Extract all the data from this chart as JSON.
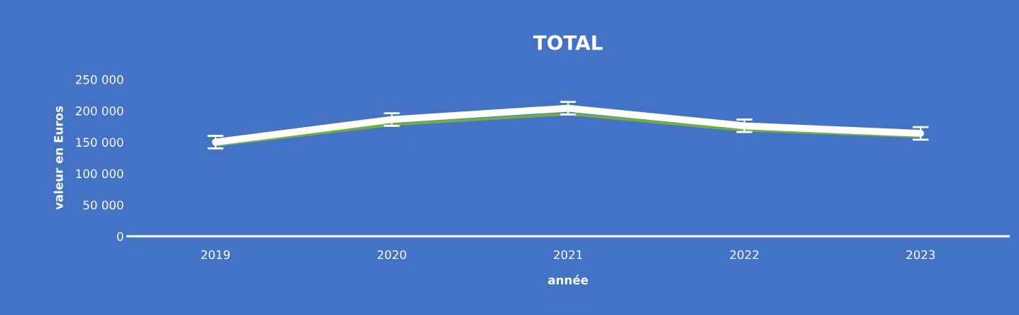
{
  "chart_data": {
    "type": "line",
    "title": "TOTAL",
    "xlabel": "année",
    "ylabel": "valeur en Euros",
    "categories": [
      "2019",
      "2020",
      "2021",
      "2022",
      "2023"
    ],
    "series": [
      {
        "color": "#70ad47",
        "values": [
          145000,
          178000,
          195000,
          169000,
          159000
        ]
      },
      {
        "color": "#ffffff",
        "values": [
          150000,
          186000,
          204000,
          176000,
          164000
        ],
        "errors": [
          10000,
          10000,
          10000,
          10000,
          10000
        ]
      }
    ],
    "ylim": [
      0,
      250000
    ],
    "yticks": [
      {
        "value": 0,
        "label": "0"
      },
      {
        "value": 50000,
        "label": "50 000"
      },
      {
        "value": 100000,
        "label": "100 000"
      },
      {
        "value": 150000,
        "label": "150 000"
      },
      {
        "value": 200000,
        "label": "200 000"
      },
      {
        "value": 250000,
        "label": "250 000"
      }
    ],
    "grid": false,
    "legend": false,
    "marker": "none",
    "line_style": "solid"
  }
}
